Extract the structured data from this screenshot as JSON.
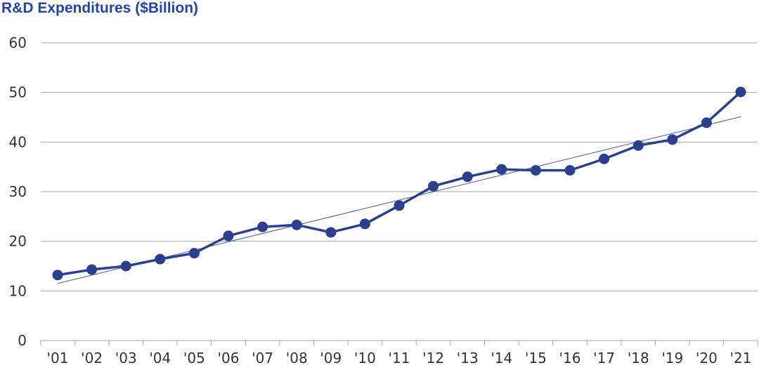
{
  "chart_data": {
    "type": "line",
    "title": "R&D Expenditures ($Billion)",
    "categories": [
      "'01",
      "'02",
      "'03",
      "'04",
      "'05",
      "'06",
      "'07",
      "'08",
      "'09",
      "'10",
      "'11",
      "'12",
      "'13",
      "'14",
      "'15",
      "'16",
      "'17",
      "'18",
      "'19",
      "'20",
      "'21"
    ],
    "series": [
      {
        "values": [
          13.2,
          14.3,
          15.0,
          16.4,
          17.6,
          21.1,
          22.9,
          23.3,
          21.8,
          23.5,
          27.2,
          31.1,
          33.0,
          34.5,
          34.3,
          34.3,
          36.6,
          39.3,
          40.5,
          43.9,
          50.1
        ]
      }
    ],
    "trendline": {
      "start": 11.5,
      "end": 45.1
    },
    "ylim": [
      0,
      60
    ],
    "yticks": [
      "0",
      "10",
      "20",
      "30",
      "40",
      "50",
      "60"
    ],
    "grid": true,
    "colors": {
      "line": "#2b3f8f",
      "marker": "#2b3f8f",
      "trend": "#3c5aa8",
      "grid": "#a6a6a6",
      "title": "#2343a8"
    }
  }
}
